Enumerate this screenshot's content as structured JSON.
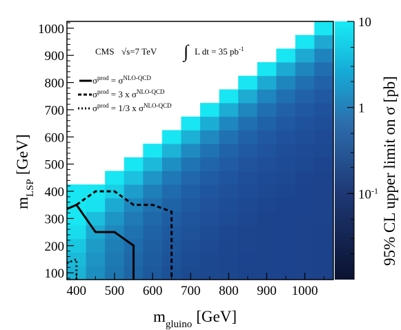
{
  "chart_data": {
    "type": "heatmap",
    "x_title": "m",
    "x_title_sub": "gluino",
    "x_title_unit": "[GeV]",
    "y_title": "m",
    "y_title_sub": "LSP",
    "y_title_unit": "[GeV]",
    "z_title": "95% CL upper limit on σ [pb]",
    "x_range": [
      375,
      1075
    ],
    "y_range": [
      75,
      1025
    ],
    "z_range": [
      0.01,
      10
    ],
    "z_log": true,
    "x_ticks": [
      "400",
      "500",
      "600",
      "700",
      "800",
      "900",
      "1000"
    ],
    "y_ticks": [
      "100",
      "200",
      "300",
      "400",
      "500",
      "600",
      "700",
      "800",
      "900",
      "1000"
    ],
    "z_ticks": [
      {
        "value": 10,
        "base": "10",
        "exp": ""
      },
      {
        "value": 1,
        "base": "1",
        "exp": ""
      },
      {
        "value": 0.1,
        "base": "10",
        "exp": "-1"
      }
    ],
    "cell_size_gev": 50,
    "heatmap_rows": [
      {
        "mlsp": 100,
        "gluino_from": 400,
        "gluino_to": 1050
      },
      {
        "mlsp": 150,
        "gluino_from": 400,
        "gluino_to": 1050
      },
      {
        "mlsp": 200,
        "gluino_from": 400,
        "gluino_to": 1050
      },
      {
        "mlsp": 250,
        "gluino_from": 400,
        "gluino_to": 1050
      },
      {
        "mlsp": 300,
        "gluino_from": 400,
        "gluino_to": 1050
      },
      {
        "mlsp": 350,
        "gluino_from": 400,
        "gluino_to": 1050
      },
      {
        "mlsp": 400,
        "gluino_from": 400,
        "gluino_to": 1050
      },
      {
        "mlsp": 450,
        "gluino_from": 500,
        "gluino_to": 1050
      },
      {
        "mlsp": 500,
        "gluino_from": 550,
        "gluino_to": 1050
      },
      {
        "mlsp": 550,
        "gluino_from": 600,
        "gluino_to": 1050
      },
      {
        "mlsp": 600,
        "gluino_from": 650,
        "gluino_to": 1050
      },
      {
        "mlsp": 650,
        "gluino_from": 700,
        "gluino_to": 1050
      },
      {
        "mlsp": 700,
        "gluino_from": 750,
        "gluino_to": 1050
      },
      {
        "mlsp": 750,
        "gluino_from": 800,
        "gluino_to": 1050
      },
      {
        "mlsp": 800,
        "gluino_from": 850,
        "gluino_to": 1050
      },
      {
        "mlsp": 850,
        "gluino_from": 900,
        "gluino_to": 1050
      },
      {
        "mlsp": 900,
        "gluino_from": 950,
        "gluino_to": 1050
      },
      {
        "mlsp": 950,
        "gluino_from": 1000,
        "gluino_to": 1050
      },
      {
        "mlsp": 1000,
        "gluino_from": 1050,
        "gluino_to": 1050
      }
    ],
    "contours": [
      {
        "label_main": "σ",
        "label_sup1": "prod",
        "label_mid": " = σ",
        "label_sup2": "NLO-QCD",
        "style": "solid",
        "points": [
          [
            375,
            335
          ],
          [
            400,
            350
          ],
          [
            450,
            250
          ],
          [
            500,
            250
          ],
          [
            550,
            200
          ],
          [
            550,
            75
          ]
        ]
      },
      {
        "label_main": "σ",
        "label_sup1": "prod",
        "label_mid": " = 3 x σ",
        "label_sup2": "NLO-QCD",
        "style": "dashed",
        "points": [
          [
            400,
            350
          ],
          [
            450,
            400
          ],
          [
            500,
            400
          ],
          [
            550,
            350
          ],
          [
            600,
            350
          ],
          [
            650,
            325
          ],
          [
            650,
            75
          ]
        ]
      },
      {
        "label_main": "σ",
        "label_sup1": "prod",
        "label_mid": " = 1/3 x σ",
        "label_sup2": "NLO-QCD",
        "style": "dotted",
        "points": [
          [
            375,
            135
          ],
          [
            400,
            150
          ],
          [
            400,
            75
          ]
        ]
      }
    ],
    "annotation_cms": "CMS",
    "annotation_energy": "√s=7 TeV",
    "annotation_lumi": "L dt = 35 pb",
    "annotation_lumi_exp": "-1",
    "annotation_integral": "∫",
    "colors": {
      "palette_low": "#0b1633",
      "palette_mid": "#2d6fa8",
      "palette_high": "#18e6f2",
      "frame": "#000000"
    }
  }
}
